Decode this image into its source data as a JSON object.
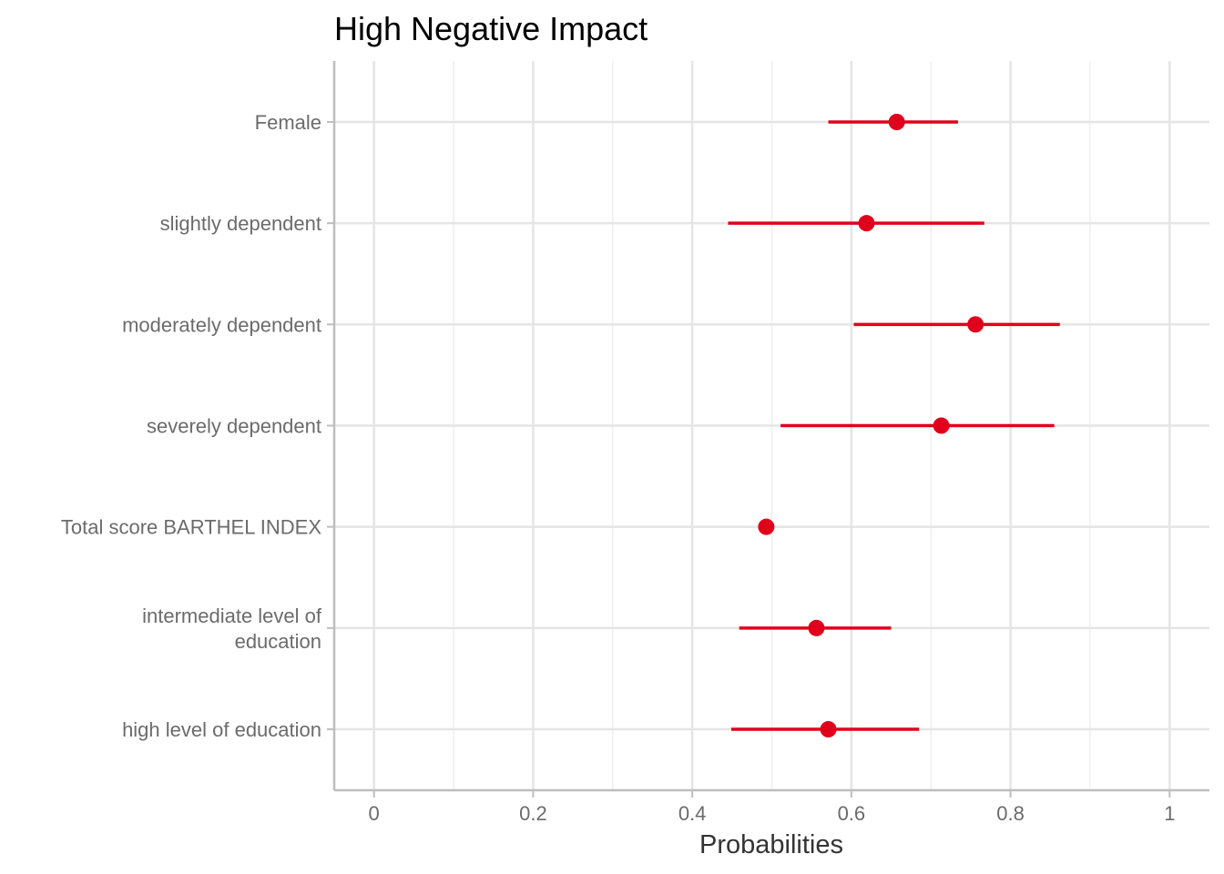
{
  "colors": {
    "point": "#E1001B",
    "grid_major": "#E5E5E5",
    "grid_minor": "#EFEFEF",
    "axis_line": "#BEBEBE",
    "tick_text": "#6B6B6B",
    "axis_title_text": "#333333",
    "title_text": "#000000"
  },
  "chart_data": {
    "type": "scatter",
    "title": "High Negative Impact",
    "xlabel": "Probabilities",
    "ylabel": "",
    "xlim": [
      -0.05,
      1.05
    ],
    "x_ticks": [
      0,
      0.2,
      0.4,
      0.6,
      0.8,
      1
    ],
    "x_tick_labels": [
      "0",
      "0.2",
      "0.4",
      "0.6",
      "0.8",
      "1"
    ],
    "x_minor_ticks": [
      0.1,
      0.3,
      0.5,
      0.7,
      0.9
    ],
    "grid": true,
    "categories": [
      "Female",
      "slightly dependent",
      "moderately dependent",
      "severely dependent",
      "Total score BARTHEL INDEX",
      "intermediate level of\neducation",
      "high level of education"
    ],
    "values": [
      0.657,
      0.619,
      0.756,
      0.713,
      0.493,
      0.556,
      0.571
    ],
    "lower": [
      0.571,
      0.445,
      0.603,
      0.511,
      0.493,
      0.459,
      0.449
    ],
    "upper": [
      0.734,
      0.767,
      0.862,
      0.855,
      0.493,
      0.65,
      0.685
    ]
  }
}
